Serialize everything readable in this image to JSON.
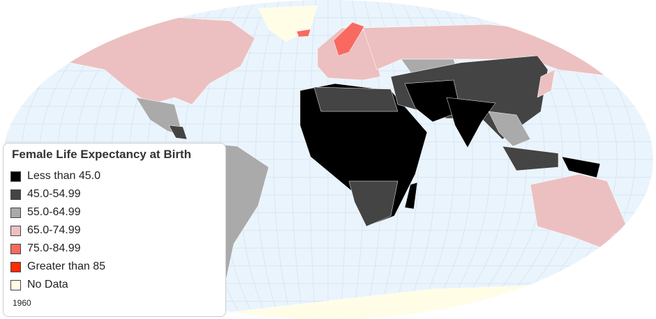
{
  "legend": {
    "title": "Female Life Expectancy at Birth",
    "items": [
      {
        "label": "Less than 45.0",
        "color": "#000000"
      },
      {
        "label": "45.0-54.99",
        "color": "#444444"
      },
      {
        "label": "55.0-64.99",
        "color": "#aaaaaa"
      },
      {
        "label": "65.0-74.99",
        "color": "#ecc0c0"
      },
      {
        "label": "75.0-84.99",
        "color": "#f86a60"
      },
      {
        "label": "Greater than 85",
        "color": "#ff2c00"
      },
      {
        "label": "No Data",
        "color": "#fffde6"
      }
    ],
    "year": "1960"
  },
  "map": {
    "ocean_color": "#eaf4fc",
    "projection": "robinson"
  }
}
